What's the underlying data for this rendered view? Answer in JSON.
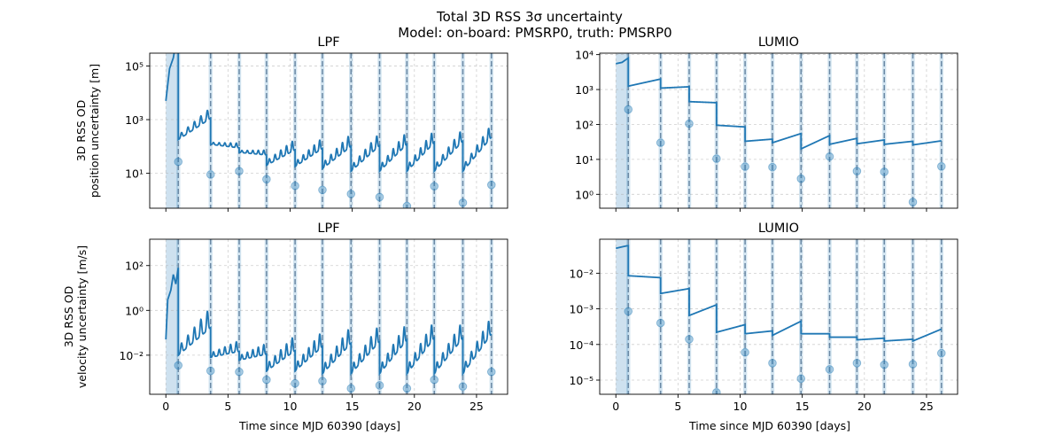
{
  "figure": {
    "suptitle_line1": "Total 3D RSS 3σ uncertainty",
    "suptitle_line2": "Model: on-board: PMSRP0, truth: PMSRP0"
  },
  "chart_data": [
    {
      "id": "lpf_pos",
      "type": "line",
      "title": "LPF",
      "ylabel": [
        "3D RSS OD",
        "position uncertainty [m]"
      ],
      "xlabel": "",
      "yscale": "log",
      "ylim": [
        0.5,
        300000
      ],
      "xlim": [
        -1.3,
        27.5
      ],
      "xticks": [
        0,
        5,
        10,
        15,
        20,
        25
      ],
      "show_xticklabels": false,
      "yticks": [
        {
          "v": 10,
          "label": "10¹"
        },
        {
          "v": 1000,
          "label": "10³"
        },
        {
          "v": 100000,
          "label": "10⁵"
        }
      ],
      "color": "#1f77b4",
      "grid": true,
      "shaded": [
        [
          0,
          1
        ]
      ],
      "vlines": [
        1,
        3.6,
        5.9,
        8.1,
        10.4,
        12.6,
        14.9,
        17.2,
        19.4,
        21.6,
        23.9,
        26.2
      ],
      "markers": [
        [
          1,
          27
        ],
        [
          3.6,
          9
        ],
        [
          5.9,
          12
        ],
        [
          8.1,
          6
        ],
        [
          10.4,
          3.4
        ],
        [
          12.6,
          2.4
        ],
        [
          14.9,
          1.7
        ],
        [
          17.2,
          1.3
        ],
        [
          19.4,
          0.6
        ],
        [
          21.6,
          3.3
        ],
        [
          23.9,
          0.8
        ],
        [
          26.2,
          3.7
        ]
      ],
      "line": {
        "init": [
          [
            0,
            5000
          ],
          [
            0.3,
            80000
          ],
          [
            0.6,
            200000
          ],
          [
            0.8,
            700000
          ],
          [
            1.0,
            1200000
          ]
        ],
        "arcs": [
          {
            "t": [
              1,
              3.6
            ],
            "start": 180,
            "end": 1800,
            "amp": 2.5
          },
          {
            "t": [
              3.6,
              5.9
            ],
            "start": 120,
            "end": 90,
            "amp": 1.5
          },
          {
            "t": [
              5.9,
              8.1
            ],
            "start": 60,
            "end": 50,
            "amp": 1.5
          },
          {
            "t": [
              8.1,
              10.4
            ],
            "start": 20,
            "end": 110,
            "amp": 2.5
          },
          {
            "t": [
              10.4,
              12.6
            ],
            "start": 18,
            "end": 130,
            "amp": 2.5
          },
          {
            "t": [
              12.6,
              14.9
            ],
            "start": 15,
            "end": 170,
            "amp": 3
          },
          {
            "t": [
              14.9,
              17.2
            ],
            "start": 12,
            "end": 190,
            "amp": 3
          },
          {
            "t": [
              17.2,
              19.4
            ],
            "start": 12,
            "end": 220,
            "amp": 3
          },
          {
            "t": [
              19.4,
              21.6
            ],
            "start": 12,
            "end": 260,
            "amp": 3
          },
          {
            "t": [
              21.6,
              23.9
            ],
            "start": 12,
            "end": 300,
            "amp": 3
          },
          {
            "t": [
              23.9,
              26.2
            ],
            "start": 12,
            "end": 450,
            "amp": 3
          }
        ]
      }
    },
    {
      "id": "lumio_pos",
      "type": "line",
      "title": "LUMIO",
      "ylabel": [],
      "xlabel": "",
      "yscale": "log",
      "ylim": [
        0.4,
        11000
      ],
      "xlim": [
        -1.3,
        27.5
      ],
      "xticks": [
        0,
        5,
        10,
        15,
        20,
        25
      ],
      "show_xticklabels": false,
      "yticks": [
        {
          "v": 1,
          "label": "10⁰"
        },
        {
          "v": 10,
          "label": "10¹"
        },
        {
          "v": 100,
          "label": "10²"
        },
        {
          "v": 1000,
          "label": "10³"
        },
        {
          "v": 10000,
          "label": "10⁴"
        }
      ],
      "color": "#1f77b4",
      "grid": true,
      "shaded": [
        [
          0,
          1
        ]
      ],
      "vlines": [
        1,
        3.6,
        5.9,
        8.1,
        10.4,
        12.6,
        14.9,
        17.2,
        19.4,
        21.6,
        23.9,
        26.2
      ],
      "markers": [
        [
          1,
          270
        ],
        [
          3.6,
          30
        ],
        [
          5.9,
          105
        ],
        [
          8.1,
          10.5
        ],
        [
          10.4,
          6.2
        ],
        [
          12.6,
          6
        ],
        [
          14.9,
          2.8
        ],
        [
          17.2,
          12
        ],
        [
          19.4,
          4.6
        ],
        [
          21.6,
          4.4
        ],
        [
          23.9,
          0.6
        ],
        [
          26.2,
          6.3
        ]
      ],
      "line": {
        "init": [
          [
            0,
            5500
          ],
          [
            0.5,
            6000
          ],
          [
            1.0,
            8000
          ]
        ],
        "arcs": [
          {
            "t": [
              1,
              3.6
            ],
            "start": 1250,
            "end": 2000,
            "amp": 1
          },
          {
            "t": [
              3.6,
              5.9
            ],
            "start": 1100,
            "end": 1200,
            "amp": 1
          },
          {
            "t": [
              5.9,
              8.1
            ],
            "start": 450,
            "end": 420,
            "amp": 1
          },
          {
            "t": [
              8.1,
              10.4
            ],
            "start": 95,
            "end": 85,
            "amp": 1
          },
          {
            "t": [
              10.4,
              12.6
            ],
            "start": 33,
            "end": 38,
            "amp": 1
          },
          {
            "t": [
              12.6,
              14.9
            ],
            "start": 30,
            "end": 55,
            "amp": 1
          },
          {
            "t": [
              14.9,
              17.2
            ],
            "start": 20,
            "end": 48,
            "amp": 1
          },
          {
            "t": [
              17.2,
              19.4
            ],
            "start": 27,
            "end": 40,
            "amp": 1
          },
          {
            "t": [
              19.4,
              21.6
            ],
            "start": 28,
            "end": 36,
            "amp": 1
          },
          {
            "t": [
              21.6,
              23.9
            ],
            "start": 27,
            "end": 33,
            "amp": 1
          },
          {
            "t": [
              23.9,
              26.2
            ],
            "start": 26,
            "end": 34,
            "amp": 1
          }
        ]
      }
    },
    {
      "id": "lpf_vel",
      "type": "line",
      "title": "LPF",
      "ylabel": [
        "3D RSS OD",
        "velocity uncertainty [m/s]"
      ],
      "xlabel": "Time since MJD 60390 [days]",
      "yscale": "log",
      "ylim": [
        0.00018,
        1500
      ],
      "xlim": [
        -1.3,
        27.5
      ],
      "xticks": [
        0,
        5,
        10,
        15,
        20,
        25
      ],
      "show_xticklabels": true,
      "yticks": [
        {
          "v": 0.01,
          "label": "10⁻²"
        },
        {
          "v": 1,
          "label": "10⁰"
        },
        {
          "v": 100,
          "label": "10²"
        }
      ],
      "color": "#1f77b4",
      "grid": true,
      "shaded": [
        [
          0,
          1
        ]
      ],
      "vlines": [
        1,
        3.6,
        5.9,
        8.1,
        10.4,
        12.6,
        14.9,
        17.2,
        19.4,
        21.6,
        23.9,
        26.2
      ],
      "markers": [
        [
          1,
          0.0035
        ],
        [
          3.6,
          0.002
        ],
        [
          5.9,
          0.0018
        ],
        [
          8.1,
          0.0008
        ],
        [
          10.4,
          0.00055
        ],
        [
          12.6,
          0.0007
        ],
        [
          14.9,
          0.00033
        ],
        [
          17.2,
          0.00045
        ],
        [
          19.4,
          0.00033
        ],
        [
          21.6,
          0.0008
        ],
        [
          23.9,
          0.0004
        ],
        [
          26.2,
          0.0018
        ]
      ],
      "line": {
        "init": [
          [
            0,
            0.05
          ],
          [
            0.15,
            3
          ],
          [
            0.4,
            8
          ],
          [
            0.6,
            40
          ],
          [
            0.8,
            15
          ],
          [
            1.0,
            80
          ]
        ],
        "arcs": [
          {
            "t": [
              1,
              3.6
            ],
            "start": 0.01,
            "end": 0.4,
            "amp": 8
          },
          {
            "t": [
              3.6,
              5.9
            ],
            "start": 0.008,
            "end": 0.02,
            "amp": 3
          },
          {
            "t": [
              5.9,
              8.1
            ],
            "start": 0.006,
            "end": 0.015,
            "amp": 3
          },
          {
            "t": [
              8.1,
              10.4
            ],
            "start": 0.002,
            "end": 0.03,
            "amp": 5
          },
          {
            "t": [
              10.4,
              12.6
            ],
            "start": 0.002,
            "end": 0.05,
            "amp": 5
          },
          {
            "t": [
              12.6,
              14.9
            ],
            "start": 0.0015,
            "end": 0.08,
            "amp": 6
          },
          {
            "t": [
              14.9,
              17.2
            ],
            "start": 0.0015,
            "end": 0.1,
            "amp": 6
          },
          {
            "t": [
              17.2,
              19.4
            ],
            "start": 0.0015,
            "end": 0.12,
            "amp": 6
          },
          {
            "t": [
              19.4,
              21.6
            ],
            "start": 0.0015,
            "end": 0.15,
            "amp": 6
          },
          {
            "t": [
              21.6,
              23.9
            ],
            "start": 0.0015,
            "end": 0.15,
            "amp": 6
          },
          {
            "t": [
              23.9,
              26.2
            ],
            "start": 0.0015,
            "end": 0.25,
            "amp": 6
          }
        ]
      }
    },
    {
      "id": "lumio_vel",
      "type": "line",
      "title": "LUMIO",
      "ylabel": [],
      "xlabel": "Time since MJD 60390 [days]",
      "yscale": "log",
      "ylim": [
        4e-06,
        0.09
      ],
      "xlim": [
        -1.3,
        27.5
      ],
      "xticks": [
        0,
        5,
        10,
        15,
        20,
        25
      ],
      "show_xticklabels": true,
      "yticks": [
        {
          "v": 1e-05,
          "label": "10⁻⁵"
        },
        {
          "v": 0.0001,
          "label": "10⁻⁴"
        },
        {
          "v": 0.001,
          "label": "10⁻³"
        },
        {
          "v": 0.01,
          "label": "10⁻²"
        }
      ],
      "color": "#1f77b4",
      "grid": true,
      "shaded": [
        [
          0,
          1
        ]
      ],
      "vlines": [
        1,
        3.6,
        5.9,
        8.1,
        10.4,
        12.6,
        14.9,
        17.2,
        19.4,
        21.6,
        23.9,
        26.2
      ],
      "markers": [
        [
          1,
          0.00085
        ],
        [
          3.6,
          0.0004
        ],
        [
          5.9,
          0.00014
        ],
        [
          8.1,
          4.5e-06
        ],
        [
          10.4,
          6e-05
        ],
        [
          12.6,
          3e-05
        ],
        [
          14.9,
          1.1e-05
        ],
        [
          17.2,
          2e-05
        ],
        [
          19.4,
          3e-05
        ],
        [
          21.6,
          2.7e-05
        ],
        [
          23.9,
          2.8e-05
        ],
        [
          26.2,
          5.7e-05
        ]
      ],
      "line": {
        "init": [
          [
            0,
            0.05
          ],
          [
            0.5,
            0.055
          ],
          [
            1.0,
            0.06
          ]
        ],
        "arcs": [
          {
            "t": [
              1,
              3.6
            ],
            "start": 0.0085,
            "end": 0.0075,
            "amp": 1
          },
          {
            "t": [
              3.6,
              5.9
            ],
            "start": 0.0027,
            "end": 0.0037,
            "amp": 1
          },
          {
            "t": [
              5.9,
              8.1
            ],
            "start": 0.00065,
            "end": 0.0013,
            "amp": 1
          },
          {
            "t": [
              8.1,
              10.4
            ],
            "start": 0.00022,
            "end": 0.00036,
            "amp": 1
          },
          {
            "t": [
              10.4,
              12.6
            ],
            "start": 0.0002,
            "end": 0.00024,
            "amp": 1
          },
          {
            "t": [
              12.6,
              14.9
            ],
            "start": 0.00018,
            "end": 0.00045,
            "amp": 1
          },
          {
            "t": [
              14.9,
              17.2
            ],
            "start": 0.0002,
            "end": 0.0002,
            "amp": 1
          },
          {
            "t": [
              17.2,
              19.4
            ],
            "start": 0.00016,
            "end": 0.00016,
            "amp": 1
          },
          {
            "t": [
              19.4,
              21.6
            ],
            "start": 0.000135,
            "end": 0.00015,
            "amp": 1
          },
          {
            "t": [
              21.6,
              23.9
            ],
            "start": 0.000125,
            "end": 0.00014,
            "amp": 1
          },
          {
            "t": [
              23.9,
              26.2
            ],
            "start": 0.000125,
            "end": 0.00027,
            "amp": 1
          }
        ]
      }
    }
  ]
}
